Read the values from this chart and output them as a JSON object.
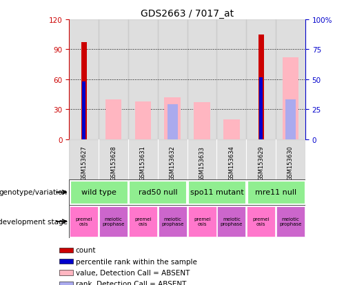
{
  "title": "GDS2663 / 7017_at",
  "samples": [
    "GSM153627",
    "GSM153628",
    "GSM153631",
    "GSM153632",
    "GSM153633",
    "GSM153634",
    "GSM153629",
    "GSM153630"
  ],
  "count_values": [
    97,
    null,
    null,
    null,
    null,
    null,
    105,
    null
  ],
  "percentile_rank": [
    58,
    null,
    null,
    null,
    null,
    null,
    62,
    null
  ],
  "absent_value": [
    null,
    40,
    38,
    42,
    37,
    20,
    null,
    82
  ],
  "absent_rank": [
    null,
    null,
    null,
    35,
    null,
    null,
    null,
    40
  ],
  "left_ylim": [
    0,
    120
  ],
  "left_yticks": [
    0,
    30,
    60,
    90,
    120
  ],
  "right_ylabels": [
    "0",
    "25",
    "50",
    "75",
    "100%"
  ],
  "genotype_groups": [
    {
      "label": "wild type",
      "start": 0,
      "end": 2,
      "color": "#90EE90"
    },
    {
      "label": "rad50 null",
      "start": 2,
      "end": 4,
      "color": "#90EE90"
    },
    {
      "label": "spo11 mutant",
      "start": 4,
      "end": 6,
      "color": "#90EE90"
    },
    {
      "label": "mre11 null",
      "start": 6,
      "end": 8,
      "color": "#90EE90"
    }
  ],
  "dev_stage_groups": [
    {
      "label": "premei\nosis",
      "color": "#FF77CC"
    },
    {
      "label": "meiotic\nprophase",
      "color": "#CC66CC"
    },
    {
      "label": "premei\nosis",
      "color": "#FF77CC"
    },
    {
      "label": "meiotic\nprophase",
      "color": "#CC66CC"
    },
    {
      "label": "premei\nosis",
      "color": "#FF77CC"
    },
    {
      "label": "meiotic\nprophase",
      "color": "#CC66CC"
    },
    {
      "label": "premei\nosis",
      "color": "#FF77CC"
    },
    {
      "label": "meiotic\nprophase",
      "color": "#CC66CC"
    }
  ],
  "count_color": "#CC0000",
  "percentile_color": "#0000CC",
  "absent_value_color": "#FFB6C1",
  "absent_rank_color": "#AAAAEE",
  "axis_color_left": "#CC0000",
  "axis_color_right": "#0000CC",
  "sample_bg_color": "#C8C8C8",
  "legend_items": [
    {
      "label": "count",
      "color": "#CC0000"
    },
    {
      "label": "percentile rank within the sample",
      "color": "#0000CC"
    },
    {
      "label": "value, Detection Call = ABSENT",
      "color": "#FFB6C1"
    },
    {
      "label": "rank, Detection Call = ABSENT",
      "color": "#AAAAEE"
    }
  ]
}
